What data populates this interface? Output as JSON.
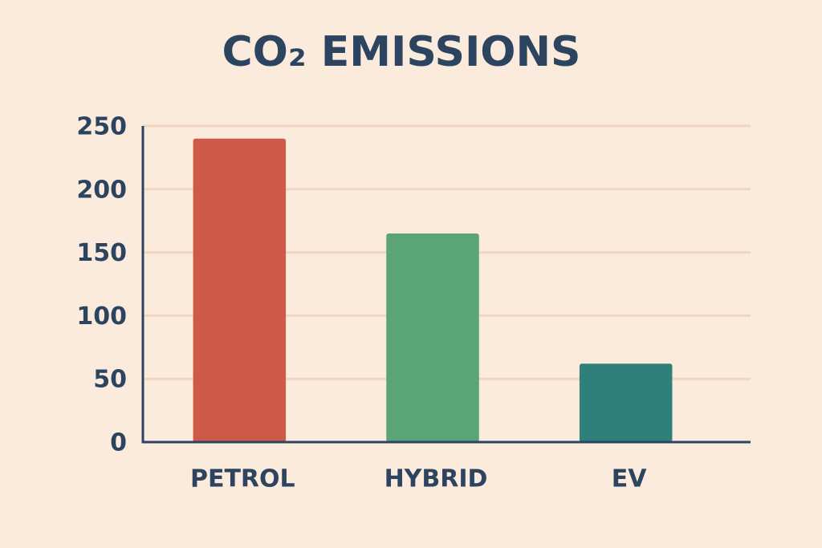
{
  "chart_data": {
    "type": "bar",
    "title": "CO₂ EMISSIONS",
    "categories": [
      "PETROL",
      "HYBRID",
      "EV"
    ],
    "values": [
      240,
      165,
      62
    ],
    "colors": [
      "#cf5a4a",
      "#5aa478",
      "#2f7f7a"
    ],
    "ylim": [
      0,
      250
    ],
    "yticks": [
      0,
      50,
      100,
      150,
      200,
      250
    ],
    "grid": true
  }
}
